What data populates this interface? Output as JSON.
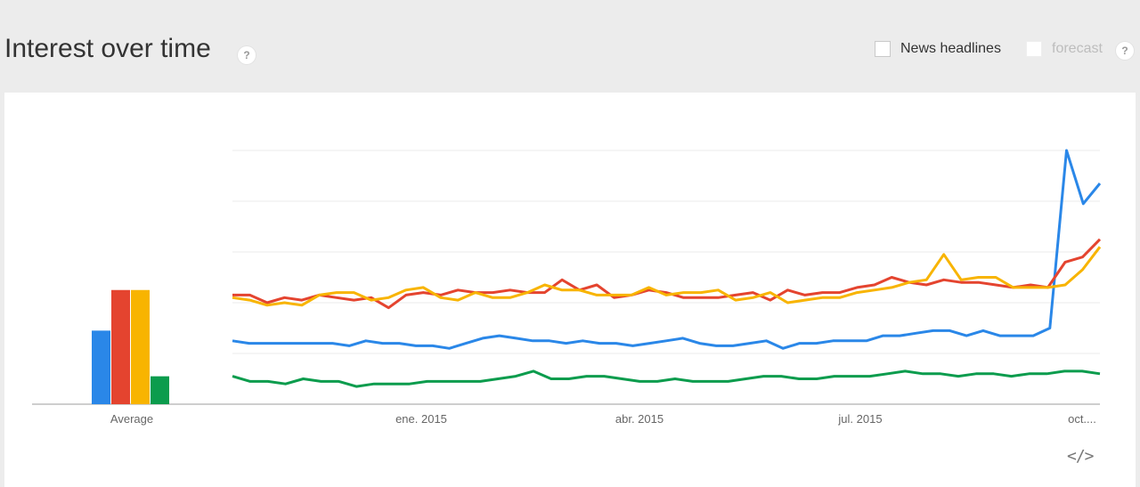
{
  "header": {
    "title": "Interest over time",
    "help_symbol": "?",
    "news_headlines_label": "News headlines",
    "forecast_label": "forecast",
    "embed_symbol": "</>"
  },
  "colors": {
    "series": [
      "#2a87e8",
      "#e4442f",
      "#f8b400",
      "#0b9c4d"
    ],
    "gridline": "#ebebeb",
    "axis": "#9e9e9e"
  },
  "chart_data": [
    {
      "type": "bar",
      "categories": [
        "Average"
      ],
      "series": [
        {
          "values": [
            29
          ]
        },
        {
          "values": [
            45
          ]
        },
        {
          "values": [
            45
          ]
        },
        {
          "values": [
            11
          ]
        }
      ],
      "ylim": [
        0,
        100
      ]
    },
    {
      "type": "line",
      "x_tick_labels": [
        "ene. 2015",
        "abr. 2015",
        "jul. 2015",
        "oct...."
      ],
      "ylim": [
        0,
        100
      ],
      "grid": true,
      "series": [
        {
          "values": [
            25,
            24,
            24,
            24,
            24,
            24,
            24,
            23,
            25,
            24,
            24,
            23,
            23,
            22,
            24,
            26,
            27,
            26,
            25,
            25,
            24,
            25,
            24,
            24,
            23,
            24,
            25,
            26,
            24,
            23,
            23,
            24,
            25,
            22,
            24,
            24,
            25,
            25,
            25,
            27,
            27,
            28,
            29,
            29,
            27,
            29,
            27,
            27,
            27,
            30,
            100,
            79,
            87
          ]
        },
        {
          "values": [
            43,
            43,
            40,
            42,
            41,
            43,
            42,
            41,
            42,
            38,
            43,
            44,
            43,
            45,
            44,
            44,
            45,
            44,
            44,
            49,
            45,
            47,
            42,
            43,
            45,
            44,
            42,
            42,
            42,
            43,
            44,
            41,
            45,
            43,
            44,
            44,
            46,
            47,
            50,
            48,
            47,
            49,
            48,
            48,
            47,
            46,
            47,
            46,
            56,
            58,
            65
          ]
        },
        {
          "values": [
            42,
            41,
            39,
            40,
            39,
            43,
            44,
            44,
            41,
            42,
            45,
            46,
            42,
            41,
            44,
            42,
            42,
            44,
            47,
            45,
            45,
            43,
            43,
            43,
            46,
            43,
            44,
            44,
            45,
            41,
            42,
            44,
            40,
            41,
            42,
            42,
            44,
            45,
            46,
            48,
            49,
            59,
            49,
            50,
            50,
            46,
            46,
            46,
            47,
            53,
            62
          ]
        },
        {
          "values": [
            11,
            9,
            9,
            8,
            10,
            9,
            9,
            7,
            8,
            8,
            8,
            9,
            9,
            9,
            9,
            10,
            11,
            13,
            10,
            10,
            11,
            11,
            10,
            9,
            9,
            10,
            9,
            9,
            9,
            10,
            11,
            11,
            10,
            10,
            11,
            11,
            11,
            12,
            13,
            12,
            12,
            11,
            12,
            12,
            11,
            12,
            12,
            13,
            13,
            12
          ]
        }
      ]
    }
  ]
}
